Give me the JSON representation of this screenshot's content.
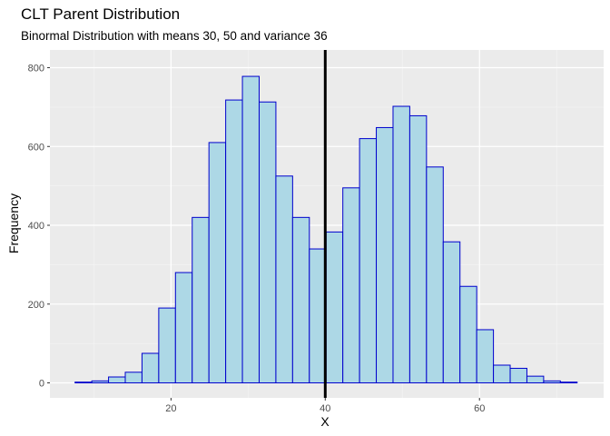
{
  "chart_data": {
    "type": "bar",
    "title": "CLT Parent Distribution",
    "subtitle": "Binormal Distribution with means 30, 50 and variance 36",
    "xlabel": "X",
    "ylabel": "Frequency",
    "xlim": [
      4.3,
      76.1
    ],
    "ylim": [
      -38,
      845
    ],
    "x_ticks": [
      20,
      40,
      60
    ],
    "y_ticks": [
      0,
      200,
      400,
      600,
      800
    ],
    "grid": true,
    "vline": 40,
    "bin_width": 2.17,
    "bin_starts": [
      7.56,
      9.73,
      11.9,
      14.07,
      16.24,
      18.41,
      20.58,
      22.75,
      24.92,
      27.09,
      29.26,
      31.43,
      33.6,
      35.77,
      37.94,
      40.11,
      42.28,
      44.45,
      46.62,
      48.79,
      50.96,
      53.13,
      55.3,
      57.47,
      59.64,
      61.81,
      63.98,
      66.15,
      68.32,
      70.49
    ],
    "values": [
      2,
      5,
      15,
      27,
      75,
      190,
      280,
      420,
      610,
      718,
      778,
      713,
      525,
      420,
      340,
      383,
      495,
      620,
      648,
      702,
      678,
      548,
      358,
      245,
      135,
      45,
      37,
      17,
      5,
      2
    ],
    "colors": {
      "fill": "#add8e6",
      "stroke": "#0000cd",
      "panel": "#ebebeb",
      "grid_major": "#ffffff",
      "vline": "#000000"
    }
  }
}
